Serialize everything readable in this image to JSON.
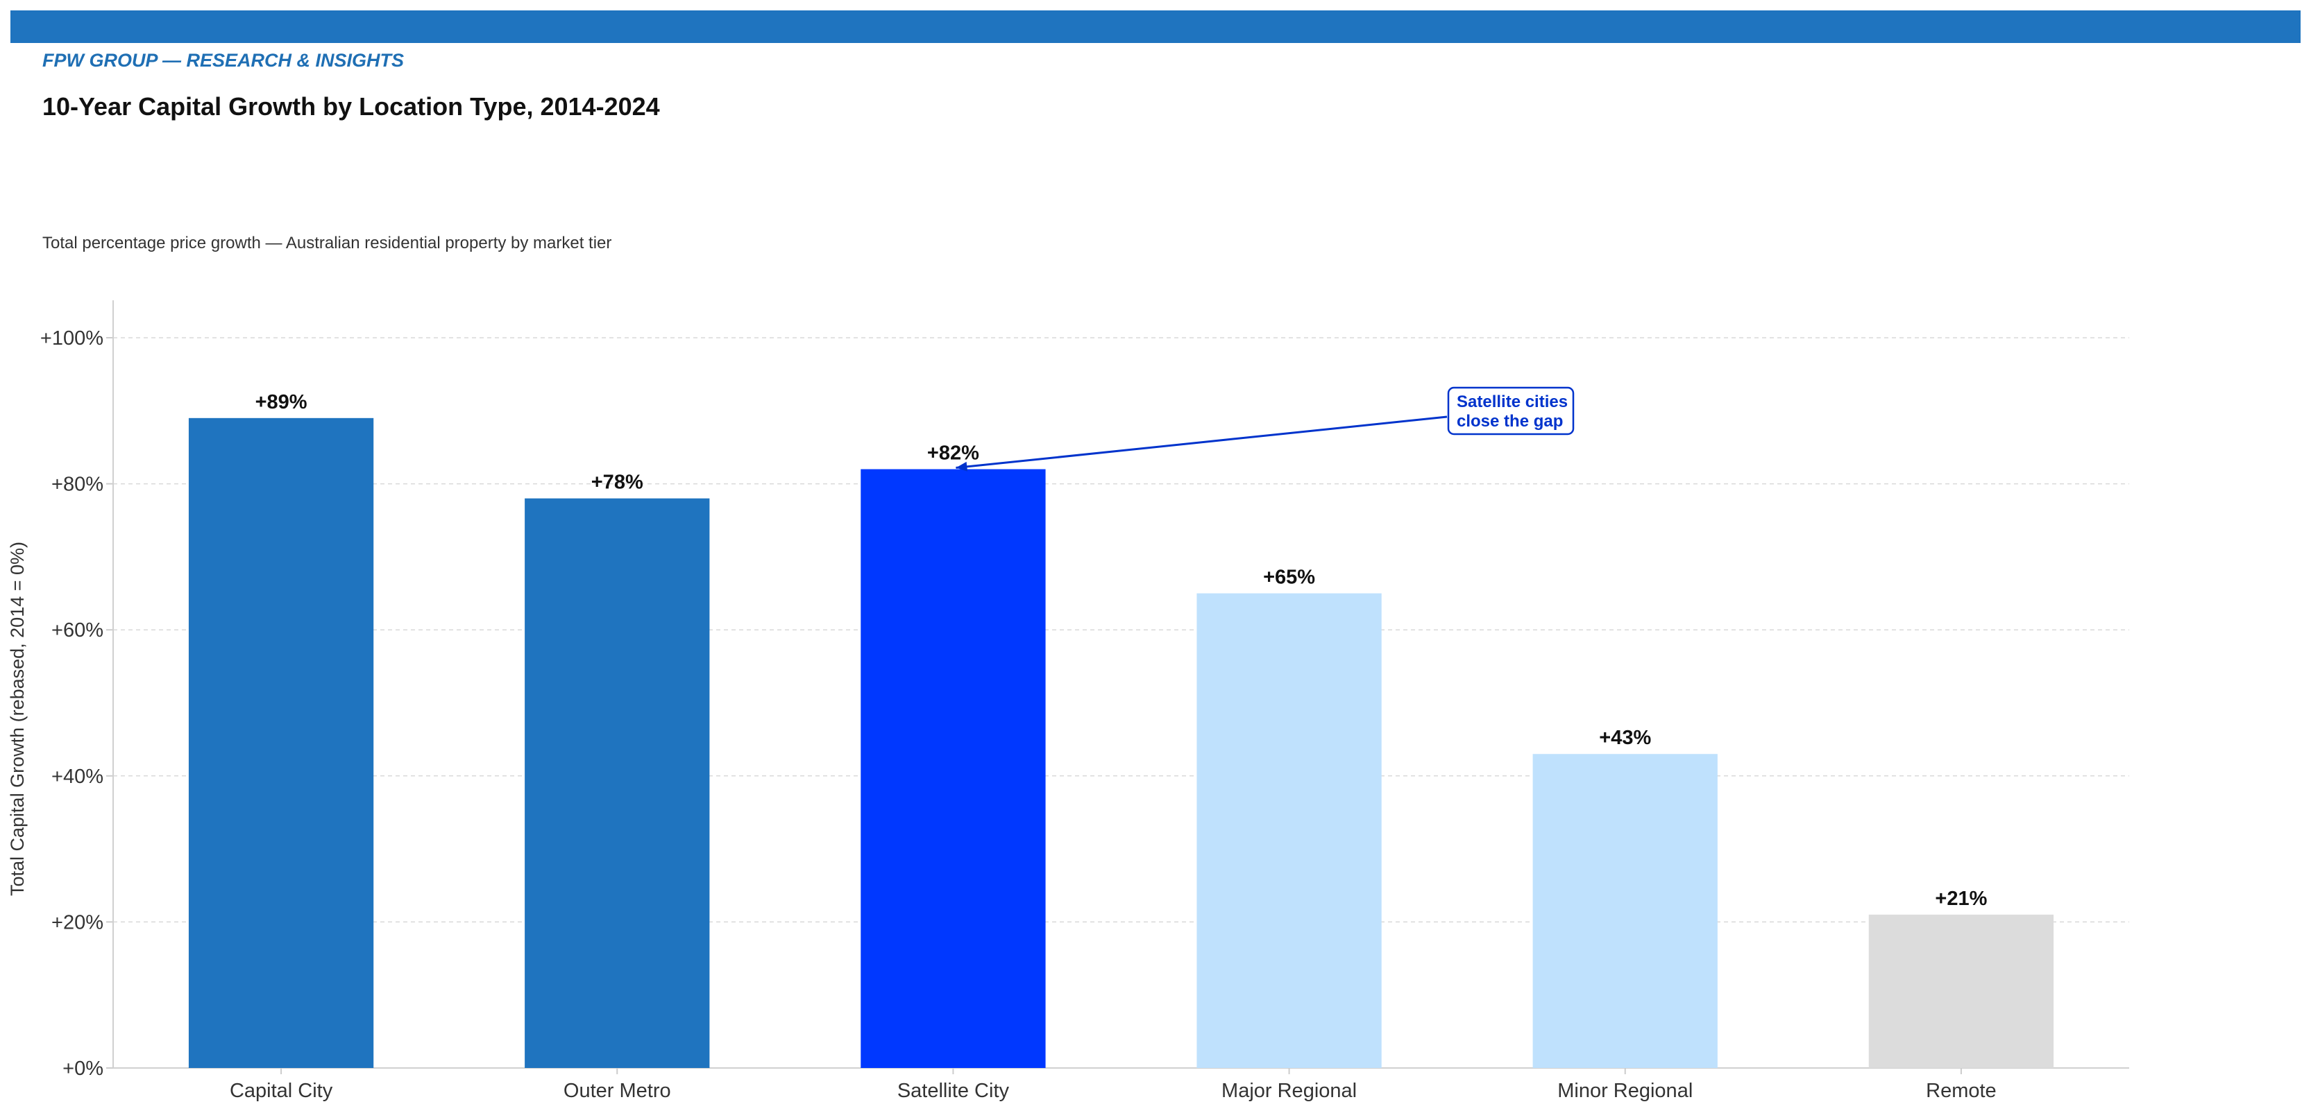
{
  "header": {
    "kicker": "FPW GROUP — RESEARCH & INSIGHTS",
    "title": "10-Year Capital Growth by Location Type, 2014-2024",
    "subtitle": "Total percentage price growth — Australian residential property by market tier"
  },
  "colors": {
    "banner": "#1f74bf",
    "capital": "#1f74bf",
    "highlight": "#0038ff",
    "regional": "#bfe1fd",
    "remote": "#dcdcdc",
    "annotation": "#0033cc"
  },
  "chart_data": {
    "type": "bar",
    "categories": [
      "Capital City",
      "Outer Metro",
      "Satellite City",
      "Major Regional",
      "Minor Regional",
      "Remote"
    ],
    "values": [
      89,
      78,
      82,
      65,
      43,
      21
    ],
    "value_labels": [
      "+89%",
      "+78%",
      "+82%",
      "+65%",
      "+43%",
      "+21%"
    ],
    "bar_colors": [
      "#1f74bf",
      "#1f74bf",
      "#0038ff",
      "#bfe1fd",
      "#bfe1fd",
      "#dcdcdc"
    ],
    "ylabel": "Total Capital Growth (rebased, 2014 = 0%)",
    "xlabel": "",
    "ylim": [
      0,
      105
    ],
    "yticks": [
      0,
      20,
      40,
      60,
      80,
      100
    ],
    "ytick_labels": [
      "+0%",
      "+20%",
      "+40%",
      "+60%",
      "+80%",
      "+100%"
    ],
    "grid": true,
    "annotation": {
      "lines": [
        "Satellite cities",
        "close the gap"
      ],
      "target_category": "Satellite City",
      "target_value": 82
    }
  }
}
